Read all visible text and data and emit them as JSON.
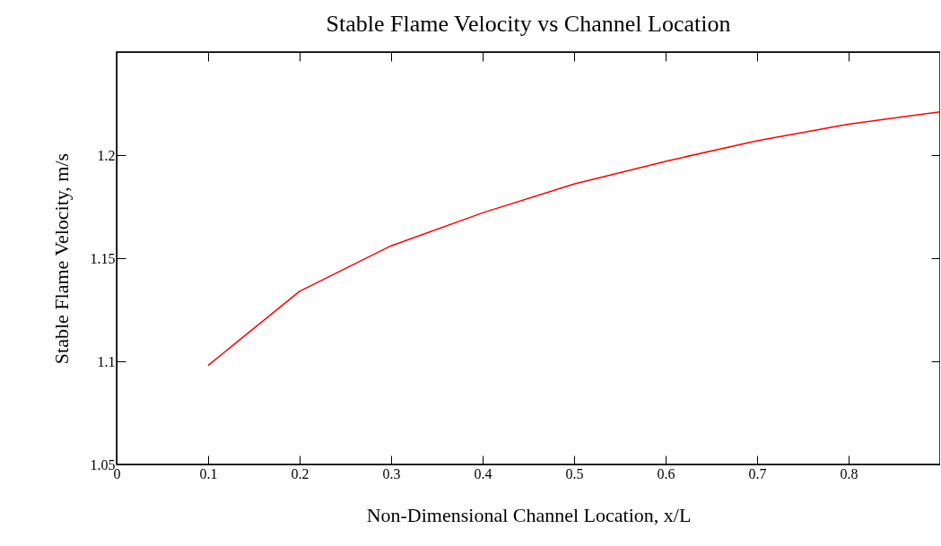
{
  "chart_data": {
    "type": "line",
    "title": "Stable Flame Velocity vs Channel Location",
    "xlabel": "Non-Dimensional Channel Location, x/L",
    "ylabel": "Stable Flame Velocity, m/s",
    "x": [
      0.1,
      0.2,
      0.3,
      0.4,
      0.5,
      0.6,
      0.7,
      0.8,
      0.9
    ],
    "series": [
      {
        "color": "#ff0000",
        "values": [
          1.098,
          1.134,
          1.156,
          1.172,
          1.186,
          1.197,
          1.207,
          1.215,
          1.221
        ]
      }
    ],
    "xlim": [
      0,
      0.9
    ],
    "xticks": [
      0,
      0.1,
      0.2,
      0.3,
      0.4,
      0.5,
      0.6,
      0.7,
      0.8
    ],
    "ylim": [
      1.05,
      1.25
    ],
    "yticks": [
      1.05,
      1.1,
      1.15,
      1.2
    ],
    "grid": false
  }
}
